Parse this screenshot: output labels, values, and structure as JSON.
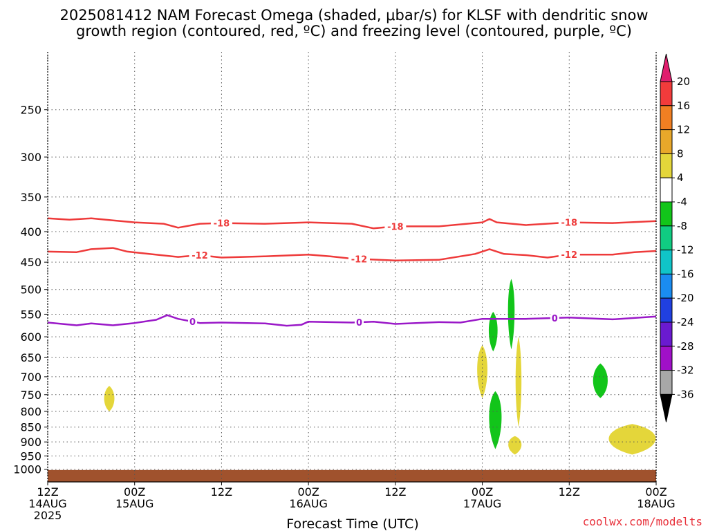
{
  "title_line1": "2025081412 NAM Forecast Omega (shaded, μbar/s) for KLSF with dendritic snow",
  "title_line2": "growth region (contoured, red, ºC) and freezing level (contoured, purple, ºC)",
  "credit": "coolwx.com/modelts",
  "chart_data": {
    "type": "time-height cross section",
    "title": "2025081412 NAM Forecast Omega (shaded, μbar/s) for KLSF with dendritic snow growth region (contoured, red, ºC) and freezing level (contoured, purple, ºC)",
    "xlabel": "Forecast Time (UTC)",
    "ylabel": "",
    "x_range_hours": [
      0,
      84
    ],
    "y_axis": "pressure (hPa), log scale, inverted",
    "ylim": [
      1050,
      200
    ],
    "grid": true,
    "y_ticks": [
      250,
      300,
      350,
      400,
      450,
      500,
      550,
      600,
      650,
      700,
      750,
      800,
      850,
      900,
      950,
      1000
    ],
    "x_ticks": [
      {
        "hour": 0,
        "line1": "12Z",
        "line2": "14AUG",
        "line3": "2025"
      },
      {
        "hour": 12,
        "line1": "00Z",
        "line2": "15AUG",
        "line3": ""
      },
      {
        "hour": 24,
        "line1": "12Z",
        "line2": "",
        "line3": ""
      },
      {
        "hour": 36,
        "line1": "00Z",
        "line2": "16AUG",
        "line3": ""
      },
      {
        "hour": 48,
        "line1": "12Z",
        "line2": "",
        "line3": ""
      },
      {
        "hour": 60,
        "line1": "00Z",
        "line2": "17AUG",
        "line3": ""
      },
      {
        "hour": 72,
        "line1": "12Z",
        "line2": "",
        "line3": ""
      },
      {
        "hour": 84,
        "line1": "00Z",
        "line2": "18AUG",
        "line3": ""
      }
    ],
    "colorbar": {
      "labels": [
        "20",
        "16",
        "12",
        "8",
        "4",
        "-4",
        "-8",
        "-12",
        "-16",
        "-20",
        "-24",
        "-28",
        "-32",
        "-36"
      ],
      "colors": [
        "#e01e6e",
        "#f23b3b",
        "#f07f22",
        "#e8a82a",
        "#e4d63a",
        "#ffffff",
        "#12c51a",
        "#10cc82",
        "#10c4c8",
        "#1a8cf0",
        "#2040e0",
        "#6a1ad0",
        "#a010c8",
        "#a8a8a8",
        "#000000"
      ]
    },
    "contours": [
      {
        "label": "-18",
        "color": "#ee3a3a",
        "points": [
          [
            0,
            380
          ],
          [
            3,
            382
          ],
          [
            6,
            380
          ],
          [
            9,
            383
          ],
          [
            12,
            386
          ],
          [
            16,
            388
          ],
          [
            18,
            394
          ],
          [
            21,
            388
          ],
          [
            24,
            387
          ],
          [
            30,
            388
          ],
          [
            36,
            386
          ],
          [
            42,
            388
          ],
          [
            45,
            395
          ],
          [
            48,
            392
          ],
          [
            54,
            392
          ],
          [
            60,
            386
          ],
          [
            61,
            381
          ],
          [
            62,
            386
          ],
          [
            66,
            390
          ],
          [
            72,
            386
          ],
          [
            78,
            387
          ],
          [
            84,
            384
          ]
        ],
        "labels_at": [
          24,
          48,
          72
        ]
      },
      {
        "label": "-12",
        "color": "#ee3a3a",
        "points": [
          [
            0,
            432
          ],
          [
            4,
            433
          ],
          [
            6,
            428
          ],
          [
            9,
            426
          ],
          [
            11,
            432
          ],
          [
            14,
            436
          ],
          [
            18,
            441
          ],
          [
            21,
            438
          ],
          [
            24,
            442
          ],
          [
            30,
            440
          ],
          [
            36,
            437
          ],
          [
            39,
            440
          ],
          [
            42,
            444
          ],
          [
            48,
            447
          ],
          [
            54,
            446
          ],
          [
            59,
            436
          ],
          [
            61,
            428
          ],
          [
            63,
            436
          ],
          [
            66,
            438
          ],
          [
            69,
            442
          ],
          [
            72,
            437
          ],
          [
            78,
            437
          ],
          [
            81,
            433
          ],
          [
            84,
            431
          ]
        ],
        "labels_at": [
          21,
          43,
          72
        ]
      },
      {
        "label": "0",
        "color": "#9a18c8",
        "points": [
          [
            0,
            568
          ],
          [
            2,
            571
          ],
          [
            4,
            574
          ],
          [
            6,
            570
          ],
          [
            9,
            574
          ],
          [
            12,
            569
          ],
          [
            15,
            562
          ],
          [
            16.5,
            552
          ],
          [
            18,
            560
          ],
          [
            21,
            569
          ],
          [
            24,
            568
          ],
          [
            30,
            570
          ],
          [
            33,
            575
          ],
          [
            35,
            573
          ],
          [
            36,
            566
          ],
          [
            42,
            568
          ],
          [
            45,
            566
          ],
          [
            48,
            571
          ],
          [
            54,
            567
          ],
          [
            57,
            568
          ],
          [
            60,
            560
          ],
          [
            66,
            560
          ],
          [
            72,
            557
          ],
          [
            78,
            561
          ],
          [
            84,
            555
          ]
        ],
        "labels_at": [
          20,
          43,
          70
        ]
      }
    ],
    "omega_regions": [
      {
        "color": "#e4d63a",
        "hour": 8.5,
        "p_center": 760,
        "half_width_hours": 0.7,
        "p_top": 725,
        "p_bottom": 800
      },
      {
        "color": "#e4d63a",
        "hour": 60.0,
        "p_center": 670,
        "half_width_hours": 0.7,
        "p_top": 620,
        "p_bottom": 760
      },
      {
        "color": "#12c51a",
        "hour": 61.5,
        "p_center": 580,
        "half_width_hours": 0.6,
        "p_top": 545,
        "p_bottom": 635
      },
      {
        "color": "#12c51a",
        "hour": 64.0,
        "p_center": 530,
        "half_width_hours": 0.45,
        "p_top": 480,
        "p_bottom": 630
      },
      {
        "color": "#12c51a",
        "hour": 61.8,
        "p_center": 800,
        "half_width_hours": 0.85,
        "p_top": 740,
        "p_bottom": 925
      },
      {
        "color": "#e4d63a",
        "hour": 65.0,
        "p_center": 700,
        "half_width_hours": 0.4,
        "p_top": 600,
        "p_bottom": 850
      },
      {
        "color": "#e4d63a",
        "hour": 64.5,
        "p_center": 905,
        "half_width_hours": 0.9,
        "p_top": 880,
        "p_bottom": 945
      },
      {
        "color": "#12c51a",
        "hour": 76.3,
        "p_center": 710,
        "half_width_hours": 1.0,
        "p_top": 665,
        "p_bottom": 760
      },
      {
        "color": "#e4d63a",
        "hour": 80.7,
        "p_center": 885,
        "half_width_hours": 3.2,
        "p_top": 840,
        "p_bottom": 945
      }
    ],
    "terrain": {
      "color": "#a0522d",
      "p_top": 1003
    }
  }
}
